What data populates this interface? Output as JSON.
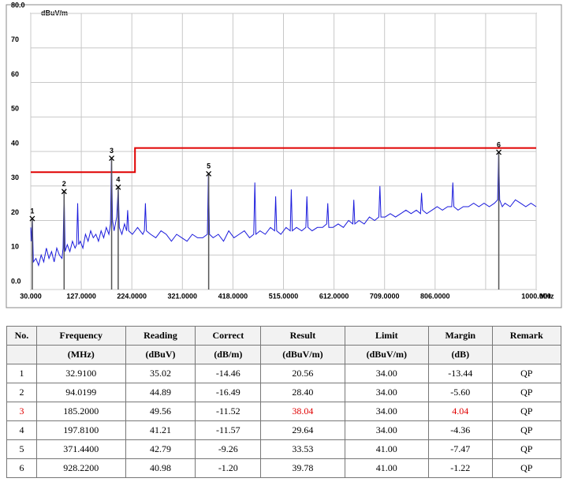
{
  "chart_data": {
    "type": "line",
    "y_label": "dBuV/m",
    "x_label": "MHz",
    "xlim": [
      30,
      1000
    ],
    "ylim": [
      0,
      80
    ],
    "xticks": [
      {
        "value": 30,
        "label": "30.000"
      },
      {
        "value": 127,
        "label": "127.0000"
      },
      {
        "value": 224,
        "label": "224.0000"
      },
      {
        "value": 321,
        "label": "321.0000"
      },
      {
        "value": 418,
        "label": "418.0000"
      },
      {
        "value": 515,
        "label": "515.0000"
      },
      {
        "value": 612,
        "label": "612.0000"
      },
      {
        "value": 709,
        "label": "709.0000"
      },
      {
        "value": 806,
        "label": "806.0000"
      },
      {
        "value": 903,
        "label": null
      },
      {
        "value": 1000,
        "label": "1000.000"
      }
    ],
    "yticks": [
      {
        "value": 0,
        "label": "0.0"
      },
      10,
      20,
      30,
      40,
      50,
      60,
      70,
      {
        "value": 80,
        "label": "80.0"
      }
    ],
    "grid": true,
    "series": [
      {
        "color": "#1a1adc",
        "x": [
          30,
          31,
          33,
          35,
          40,
          45,
          50,
          55,
          60,
          65,
          70,
          75,
          80,
          85,
          90,
          92,
          94,
          96,
          100,
          105,
          110,
          115,
          118,
          120,
          122,
          125,
          130,
          135,
          140,
          145,
          150,
          155,
          160,
          165,
          170,
          175,
          180,
          183,
          185,
          187,
          190,
          195,
          198,
          200,
          205,
          210,
          214,
          216,
          218,
          225,
          235,
          245,
          248,
          250,
          252,
          260,
          270,
          280,
          290,
          300,
          310,
          320,
          330,
          340,
          350,
          360,
          369,
          371,
          373,
          380,
          390,
          400,
          410,
          420,
          430,
          440,
          450,
          458,
          460,
          462,
          470,
          480,
          490,
          498,
          500,
          502,
          510,
          520,
          528,
          530,
          532,
          540,
          550,
          558,
          560,
          562,
          570,
          580,
          590,
          598,
          600,
          602,
          610,
          620,
          630,
          640,
          648,
          650,
          652,
          660,
          670,
          680,
          690,
          698,
          700,
          702,
          710,
          720,
          730,
          740,
          750,
          760,
          770,
          778,
          780,
          782,
          790,
          800,
          810,
          820,
          830,
          838,
          840,
          842,
          850,
          860,
          870,
          880,
          890,
          900,
          910,
          920,
          926,
          928,
          930,
          935,
          940,
          950,
          960,
          970,
          980,
          990,
          1000
        ],
        "values": [
          18,
          14,
          20.6,
          8,
          9,
          7,
          10,
          8,
          12,
          9,
          11,
          8,
          12,
          10,
          9,
          12,
          28.4,
          11,
          13,
          11,
          14,
          12,
          13,
          25,
          13,
          14,
          12,
          16,
          14,
          17,
          15,
          16,
          14,
          17,
          15,
          18,
          16,
          19,
          38,
          20,
          17,
          21,
          29.6,
          18,
          16,
          19,
          17,
          23,
          17,
          16,
          18,
          16,
          17,
          25,
          17,
          16,
          15,
          17,
          16,
          14,
          16,
          15,
          14,
          16,
          15,
          15,
          16,
          33.5,
          16,
          15,
          16,
          14,
          17,
          15,
          16,
          17,
          15,
          16,
          31,
          16,
          17,
          16,
          18,
          17,
          27,
          17,
          16,
          18,
          17,
          29,
          17,
          18,
          17,
          18,
          27,
          18,
          17,
          18,
          18,
          19,
          25,
          18,
          18,
          19,
          18,
          20,
          19,
          26,
          19,
          20,
          19,
          21,
          20,
          21,
          30,
          21,
          21,
          22,
          21,
          22,
          23,
          22,
          23,
          22,
          28,
          23,
          22,
          23,
          24,
          23,
          24,
          24,
          31,
          24,
          23,
          24,
          24,
          25,
          24,
          25,
          24,
          25,
          26,
          39.8,
          26,
          24,
          25,
          24,
          26,
          25,
          24,
          25,
          24
        ]
      },
      {
        "color": "#e00000",
        "x": [
          30,
          230,
          230,
          1000
        ],
        "values": [
          34,
          34,
          41,
          41
        ]
      }
    ],
    "markers": {
      "labels": [
        "1",
        "2",
        "3",
        "4",
        "5",
        "6"
      ],
      "x": [
        32.91,
        94.0199,
        185.2,
        197.81,
        371.44,
        928.22
      ],
      "values": [
        20.56,
        28.4,
        38.04,
        29.64,
        33.53,
        39.78
      ]
    }
  },
  "table": {
    "header": [
      "No.",
      "Frequency",
      "Reading",
      "Correct",
      "Result",
      "Limit",
      "Margin",
      "Remark"
    ],
    "units": [
      null,
      "(MHz)",
      "(dBuV)",
      "(dB/m)",
      "(dBuV/m)",
      "(dBuV/m)",
      "(dB)",
      null
    ],
    "rows": [
      [
        "1",
        "32.9100",
        "35.02",
        "-14.46",
        "20.56",
        "34.00",
        "-13.44",
        "QP"
      ],
      [
        "2",
        "94.0199",
        "44.89",
        "-16.49",
        "28.40",
        "34.00",
        "-5.60",
        "QP"
      ],
      [
        "3",
        "185.2000",
        "49.56",
        "-11.52",
        "38.04",
        "34.00",
        "4.04",
        "QP"
      ],
      [
        "4",
        "197.8100",
        "41.21",
        "-11.57",
        "29.64",
        "34.00",
        "-4.36",
        "QP"
      ],
      [
        "5",
        "371.4400",
        "42.79",
        "-9.26",
        "33.53",
        "41.00",
        "-7.47",
        "QP"
      ],
      [
        "6",
        "928.2200",
        "40.98",
        "-1.20",
        "39.78",
        "41.00",
        "-1.22",
        "QP"
      ]
    ]
  }
}
